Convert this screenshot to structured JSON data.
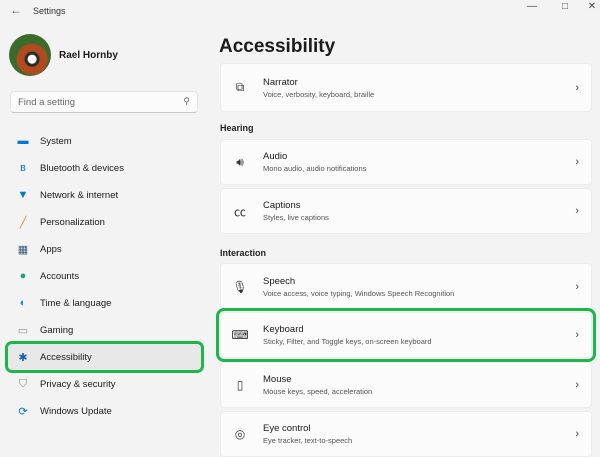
{
  "window": {
    "title": "Settings",
    "back_icon": "arrow-left-icon",
    "controls": [
      "minimize-icon",
      "maximize-icon",
      "close-icon"
    ]
  },
  "user": {
    "name": "Rael Hornby"
  },
  "search": {
    "placeholder": "Find a setting"
  },
  "sidebar": {
    "items": [
      {
        "label": "System",
        "icon": "monitor-icon",
        "color": "#0078d4"
      },
      {
        "label": "Bluetooth & devices",
        "icon": "bluetooth-icon",
        "color": "#0078d4"
      },
      {
        "label": "Network & internet",
        "icon": "wifi-icon",
        "color": "#0078d4"
      },
      {
        "label": "Personalization",
        "icon": "brush-icon",
        "color": "#e8823a"
      },
      {
        "label": "Apps",
        "icon": "apps-icon",
        "color": "#3b5a7a"
      },
      {
        "label": "Accounts",
        "icon": "person-icon",
        "color": "#1aa37a"
      },
      {
        "label": "Time & language",
        "icon": "globe-clock-icon",
        "color": "#1a8fd0"
      },
      {
        "label": "Gaming",
        "icon": "gamepad-icon",
        "color": "#8a8a8a"
      },
      {
        "label": "Accessibility",
        "icon": "accessibility-icon",
        "color": "#1a5fb4",
        "selected": true
      },
      {
        "label": "Privacy & security",
        "icon": "shield-icon",
        "color": "#8a8a8a"
      },
      {
        "label": "Windows Update",
        "icon": "update-icon",
        "color": "#0a70d0"
      }
    ]
  },
  "main": {
    "title": "Accessibility",
    "sections": [
      {
        "header": "",
        "items": [
          {
            "title": "Narrator",
            "subtitle": "Voice, verbosity, keyboard, braille",
            "icon": "narrator-icon"
          }
        ]
      },
      {
        "header": "Hearing",
        "items": [
          {
            "title": "Audio",
            "subtitle": "Mono audio, audio notifications",
            "icon": "speaker-icon"
          },
          {
            "title": "Captions",
            "subtitle": "Styles, live captions",
            "icon": "captions-icon"
          }
        ]
      },
      {
        "header": "Interaction",
        "items": [
          {
            "title": "Speech",
            "subtitle": "Voice access, voice typing, Windows Speech Recognition",
            "icon": "microphone-icon"
          },
          {
            "title": "Keyboard",
            "subtitle": "Sticky, Filter, and Toggle keys, on-screen keyboard",
            "icon": "keyboard-icon",
            "highlighted": true
          },
          {
            "title": "Mouse",
            "subtitle": "Mouse keys, speed, acceleration",
            "icon": "mouse-icon"
          },
          {
            "title": "Eye control",
            "subtitle": "Eye tracker, text-to-speech",
            "icon": "eye-control-icon"
          }
        ]
      }
    ]
  },
  "highlight_color": "#1db54c"
}
